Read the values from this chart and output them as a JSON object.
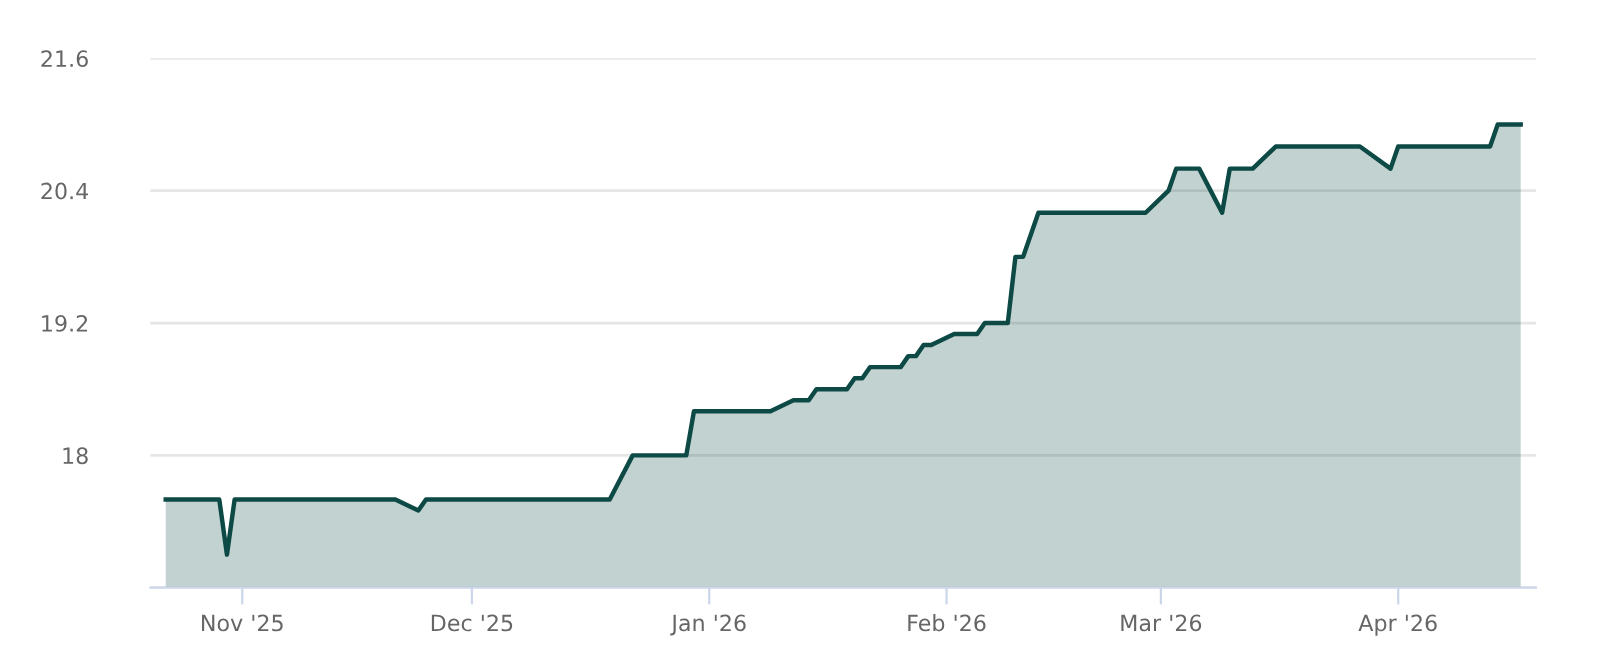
{
  "chart_data": {
    "type": "area",
    "x": [
      "2025-10-22",
      "2025-10-29",
      "2025-10-30",
      "2025-10-31",
      "2025-11-21",
      "2025-11-24",
      "2025-11-25",
      "2025-12-19",
      "2025-12-22",
      "2025-12-29",
      "2025-12-30",
      "2026-01-09",
      "2026-01-12",
      "2026-01-14",
      "2026-01-15",
      "2026-01-19",
      "2026-01-20",
      "2026-01-21",
      "2026-01-22",
      "2026-01-26",
      "2026-01-27",
      "2026-01-28",
      "2026-01-29",
      "2026-01-30",
      "2026-02-02",
      "2026-02-05",
      "2026-02-06",
      "2026-02-09",
      "2026-02-10",
      "2026-02-11",
      "2026-02-13",
      "2026-02-27",
      "2026-03-02",
      "2026-03-03",
      "2026-03-06",
      "2026-03-09",
      "2026-03-10",
      "2026-03-13",
      "2026-03-16",
      "2026-03-27",
      "2026-03-31",
      "2026-04-01",
      "2026-04-13",
      "2026-04-14",
      "2026-04-17"
    ],
    "series": [
      {
        "color": "#0d4a45",
        "values": [
          17.6,
          17.6,
          17.1,
          17.6,
          17.6,
          17.5,
          17.6,
          17.6,
          18.0,
          18.0,
          18.4,
          18.4,
          18.5,
          18.5,
          18.6,
          18.6,
          18.7,
          18.7,
          18.8,
          18.8,
          18.9,
          18.9,
          19.0,
          19.0,
          19.1,
          19.1,
          19.2,
          19.2,
          19.8,
          19.8,
          20.2,
          20.2,
          20.4,
          20.6,
          20.6,
          20.2,
          20.6,
          20.6,
          20.8,
          20.8,
          20.6,
          20.8,
          20.8,
          21.0,
          21.0
        ]
      }
    ],
    "xlim": [
      "2025-10-20",
      "2026-04-19"
    ],
    "xticks": [
      {
        "value": "2025-11-01",
        "label": "Nov '25"
      },
      {
        "value": "2025-12-01",
        "label": "Dec '25"
      },
      {
        "value": "2026-01-01",
        "label": "Jan '26"
      },
      {
        "value": "2026-02-01",
        "label": "Feb '26"
      },
      {
        "value": "2026-03-01",
        "label": "Mar '26"
      },
      {
        "value": "2026-04-01",
        "label": "Apr '26"
      }
    ],
    "ylim": [
      16.8,
      21.6
    ],
    "yticks": [
      {
        "value": 16.8,
        "label": null
      },
      18,
      19.2,
      20.4,
      21.6
    ],
    "grid": "y",
    "legend": false,
    "marker": "none",
    "line_style": "solid"
  }
}
